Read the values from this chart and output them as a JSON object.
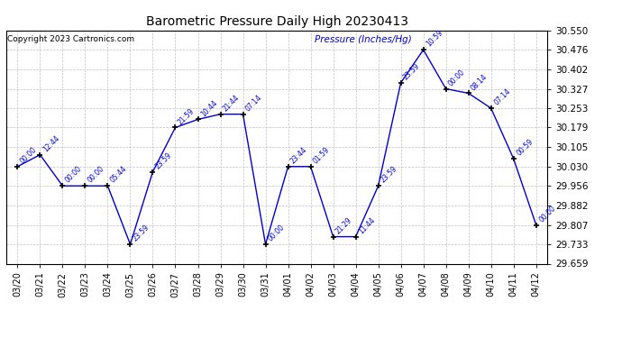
{
  "title": "Barometric Pressure Daily High 20230413",
  "ylabel": "Pressure (Inches/Hg)",
  "copyright": "Copyright 2023 Cartronics.com",
  "line_color": "#0000CC",
  "marker_color": "#000000",
  "background_color": "#ffffff",
  "grid_color": "#c0c0c0",
  "ylim": [
    29.659,
    30.55
  ],
  "yticks": [
    29.659,
    29.733,
    29.807,
    29.882,
    29.956,
    30.03,
    30.105,
    30.179,
    30.253,
    30.327,
    30.402,
    30.476,
    30.55
  ],
  "dates": [
    "03/20",
    "03/21",
    "03/22",
    "03/23",
    "03/24",
    "03/25",
    "03/26",
    "03/27",
    "03/28",
    "03/29",
    "03/30",
    "03/31",
    "04/01",
    "04/02",
    "04/03",
    "04/04",
    "04/05",
    "04/06",
    "04/07",
    "04/08",
    "04/09",
    "04/10",
    "04/11",
    "04/12"
  ],
  "values": [
    30.03,
    30.075,
    29.956,
    29.956,
    29.956,
    29.733,
    30.01,
    30.179,
    30.21,
    30.23,
    30.23,
    29.733,
    30.03,
    30.03,
    29.762,
    29.762,
    29.956,
    30.35,
    30.476,
    30.327,
    30.31,
    30.253,
    30.06,
    29.807
  ],
  "time_labels": [
    "00:00",
    "12:44",
    "00:00",
    "00:00",
    "05:44",
    "23:59",
    "23:59",
    "21:59",
    "10:44",
    "21:44",
    "07:14",
    "00:00",
    "23:44",
    "01:59",
    "21:29",
    "11:44",
    "23:59",
    "23:59",
    "10:59",
    "00:00",
    "08:14",
    "07:14",
    "00:59",
    "00:00"
  ]
}
